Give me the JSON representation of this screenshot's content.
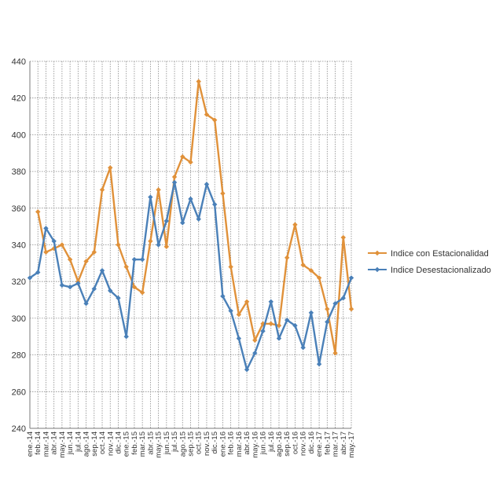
{
  "chart_data": {
    "type": "line",
    "categories": [
      "ene.-14",
      "feb.-14",
      "mar.-14",
      "abr.-14",
      "may.-14",
      "jun.-14",
      "jul.-14",
      "ago.-14",
      "sep.-14",
      "oct.-14",
      "nov.-14",
      "dic.-14",
      "ene.-15",
      "feb.-15",
      "mar.-15",
      "abr.-15",
      "may.-15",
      "jun.-15",
      "jul.-15",
      "ago.-15",
      "sep.-15",
      "oct.-15",
      "nov.-15",
      "dic.-15",
      "ene.-16",
      "feb.-16",
      "mar.-16",
      "abr.-16",
      "may.-16",
      "jun.-16",
      "jul.-16",
      "ago.-16",
      "sep.-16",
      "oct.-16",
      "nov.-16",
      "dic.-16",
      "ene.-17",
      "feb.-17",
      "mar.-17",
      "abr.-17",
      "may.-17"
    ],
    "series": [
      {
        "name": "Indice con Estacionalidad",
        "color": "#E0913A",
        "values": [
          null,
          358,
          336,
          338,
          340,
          332,
          320,
          331,
          336,
          370,
          382,
          340,
          328,
          317,
          314,
          342,
          370,
          339,
          377,
          388,
          385,
          429,
          411,
          408,
          368,
          328,
          302,
          309,
          288,
          297,
          297,
          296,
          333,
          351,
          329,
          326,
          322,
          305,
          281,
          344,
          305
        ]
      },
      {
        "name": "Indice Desestacionalizado",
        "color": "#4A80B8",
        "values": [
          322,
          325,
          349,
          342,
          318,
          317,
          319,
          308,
          316,
          326,
          315,
          311,
          290,
          332,
          332,
          366,
          340,
          353,
          374,
          352,
          365,
          354,
          373,
          362,
          312,
          304,
          289,
          272,
          281,
          293,
          309,
          289,
          299,
          296,
          284,
          303,
          275,
          298,
          308,
          311,
          322
        ]
      }
    ],
    "ylim": [
      240,
      440
    ],
    "yticks": [
      240,
      260,
      280,
      300,
      320,
      340,
      360,
      380,
      400,
      420,
      440
    ],
    "grid": true,
    "legend_position": "right"
  }
}
